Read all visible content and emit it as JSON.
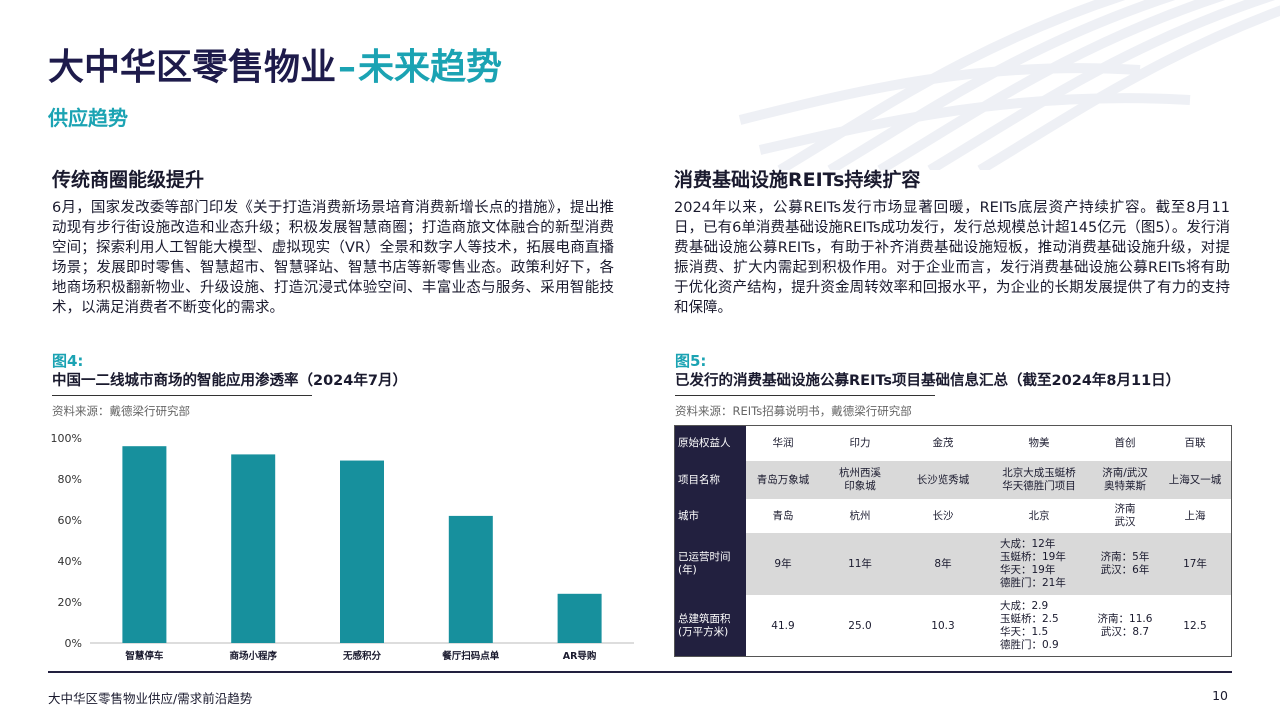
{
  "title": {
    "main": "大中华区零售物业",
    "dash": "–",
    "accent": "未来趋势"
  },
  "subtitle": "供应趋势",
  "left": {
    "heading": "传统商圈能级提升",
    "body": "6月，国家发改委等部门印发《关于打造消费新场景培育消费新增长点的措施》，提出推动现有步行街设施改造和业态升级；积极发展智慧商圈；打造商旅文体融合的新型消费空间；探索利用人工智能大模型、虚拟现实（VR）全景和数字人等技术，拓展电商直播场景；发展即时零售、智慧超市、智慧驿站、智慧书店等新零售业态。政策利好下，各地商场积极翻新物业、升级设施、打造沉浸式体验空间、丰富业态与服务、采用智能技术，以满足消费者不断变化的需求。"
  },
  "right": {
    "heading": "消费基础设施REITs持续扩容",
    "body": "2024年以来，公募REITs发行市场显著回暖，REITs底层资产持续扩容。截至8月11日，已有6单消费基础设施REITs成功发行，发行总规模总计超145亿元（图5）。发行消费基础设施公募REITs，有助于补齐消费基础设施短板，推动消费基础设施升级，对提振消费、扩大内需起到积极作用。对于企业而言，发行消费基础设施公募REITs将有助于优化资产结构，提升资金周转效率和回报水平，为企业的长期发展提供了有力的支持和保障。"
  },
  "fig4": {
    "label": "图4:",
    "title": "中国一二线城市商场的智能应用渗透率（2024年7月）",
    "source": "资料来源：戴德梁行研究部"
  },
  "fig5": {
    "label": "图5:",
    "title": "已发行的消费基础设施公募REITs项目基础信息汇总（截至2024年8月11日）",
    "source": "资料来源：REITs招募说明书，戴德梁行研究部"
  },
  "chart_data": {
    "type": "bar",
    "categories": [
      "智慧停车",
      "商场小程序",
      "无感积分",
      "餐厅扫码点单",
      "AR导购"
    ],
    "values": [
      96,
      92,
      89,
      62,
      24
    ],
    "unit": "%",
    "ylim": [
      0,
      100
    ],
    "yticks": [
      "0%",
      "20%",
      "40%",
      "60%",
      "80%",
      "100%"
    ],
    "bar_color": "#17909d",
    "grid": false
  },
  "table": {
    "rows": [
      {
        "header": "原始权益人",
        "cells": [
          "华润",
          "印力",
          "金茂",
          "物美",
          "首创",
          "百联"
        ]
      },
      {
        "header": "项目名称",
        "cells": [
          "青岛万象城",
          "杭州西溪\n印象城",
          "长沙览秀城",
          "北京大成玉蜓桥\n华天德胜门项目",
          "济南/武汉\n奥特莱斯",
          "上海又一城"
        ]
      },
      {
        "header": "城市",
        "cells": [
          "青岛",
          "杭州",
          "长沙",
          "北京",
          "济南\n武汉",
          "上海"
        ]
      },
      {
        "header": "已运营时间\n(年)",
        "cells": [
          "9年",
          "11年",
          "8年",
          "大成：12年\n玉蜓桥：19年\n华天：19年\n德胜门：21年",
          "济南：5年\n武汉：6年",
          "17年"
        ]
      },
      {
        "header": "总建筑面积\n(万平方米)",
        "cells": [
          "41.9",
          "25.0",
          "10.3",
          "大成：2.9\n玉蜓桥：2.5\n华天：1.5\n德胜门：0.9",
          "济南：11.6\n武汉：8.7",
          "12.5"
        ]
      }
    ]
  },
  "footer": {
    "left": "大中华区零售物业供应/需求前沿趋势",
    "page": "10"
  },
  "colors": {
    "navy": "#1e1b4b",
    "teal": "#1ba3b3",
    "table_header": "#22203f",
    "shade": "#d9d9d9"
  }
}
